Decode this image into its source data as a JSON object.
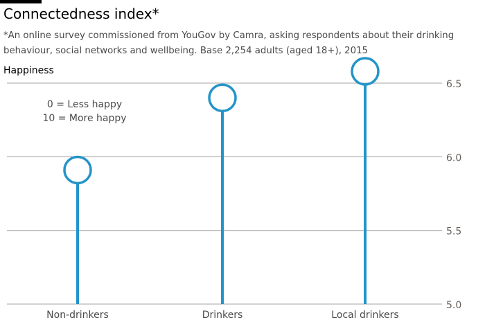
{
  "chart_data": {
    "type": "lollipop",
    "title": "Connectedness index*",
    "subtitle": "*An online survey commissioned from YouGov by Camra, asking respondents about their drinking behaviour, social networks and wellbeing. Base 2,254 adults (aged 18+), 2015",
    "ylabel": "Happiness",
    "annotations": [
      "0 = Less happy",
      "10 = More happy"
    ],
    "categories": [
      "Non-drinkers",
      "Drinkers",
      "Local drinkers"
    ],
    "values": [
      5.91,
      6.4,
      6.58
    ],
    "ylim": [
      5.0,
      6.5
    ],
    "yticks": [
      5.0,
      5.5,
      6.0,
      6.5
    ],
    "ytick_labels": [
      "5.0",
      "5.5",
      "6.0",
      "6.5"
    ],
    "grid": true,
    "color": "#2494c8"
  }
}
